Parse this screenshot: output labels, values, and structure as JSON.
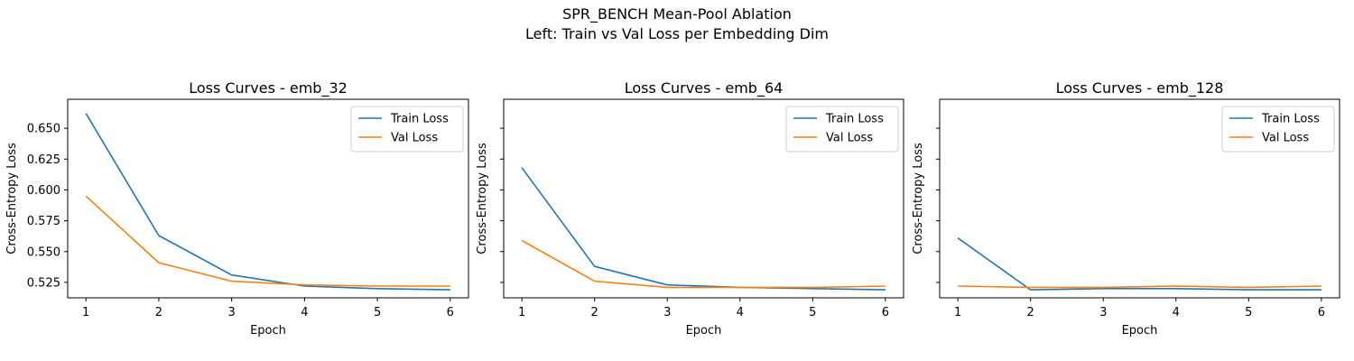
{
  "suptitle": {
    "line1": "SPR_BENCH Mean-Pool Ablation",
    "line2": "Left: Train vs Val Loss per Embedding Dim"
  },
  "chart_data": [
    {
      "type": "line",
      "title": "Loss Curves - emb_32",
      "xlabel": "Epoch",
      "ylabel": "Cross-Entropy Loss",
      "x": [
        1,
        2,
        3,
        4,
        5,
        6
      ],
      "xticks": [
        "1",
        "2",
        "3",
        "4",
        "5",
        "6"
      ],
      "yticks": [
        "0.525",
        "0.550",
        "0.575",
        "0.600",
        "0.625",
        "0.650"
      ],
      "ytick_values": [
        0.525,
        0.55,
        0.575,
        0.6,
        0.625,
        0.65
      ],
      "ylim": [
        0.5125,
        0.6735
      ],
      "legend": "upper right",
      "series": [
        {
          "name": "Train Loss",
          "color": "#1f77b4",
          "values": [
            0.662,
            0.563,
            0.531,
            0.522,
            0.52,
            0.519
          ]
        },
        {
          "name": "Val Loss",
          "color": "#ff7f0e",
          "values": [
            0.595,
            0.541,
            0.526,
            0.523,
            0.522,
            0.522
          ]
        }
      ]
    },
    {
      "type": "line",
      "title": "Loss Curves - emb_64",
      "xlabel": "Epoch",
      "ylabel": "Cross-Entropy Loss",
      "x": [
        1,
        2,
        3,
        4,
        5,
        6
      ],
      "xticks": [
        "1",
        "2",
        "3",
        "4",
        "5",
        "6"
      ],
      "yticks": [],
      "ytick_values": [
        0.525,
        0.55,
        0.575,
        0.6,
        0.625,
        0.65
      ],
      "ylim": [
        0.5125,
        0.6735
      ],
      "legend": "upper right",
      "series": [
        {
          "name": "Train Loss",
          "color": "#1f77b4",
          "values": [
            0.618,
            0.538,
            0.523,
            0.521,
            0.52,
            0.519
          ]
        },
        {
          "name": "Val Loss",
          "color": "#ff7f0e",
          "values": [
            0.559,
            0.526,
            0.521,
            0.521,
            0.521,
            0.522
          ]
        }
      ]
    },
    {
      "type": "line",
      "title": "Loss Curves - emb_128",
      "xlabel": "Epoch",
      "ylabel": "Cross-Entropy Loss",
      "x": [
        1,
        2,
        3,
        4,
        5,
        6
      ],
      "xticks": [
        "1",
        "2",
        "3",
        "4",
        "5",
        "6"
      ],
      "yticks": [],
      "ytick_values": [
        0.525,
        0.55,
        0.575,
        0.6,
        0.625,
        0.65
      ],
      "ylim": [
        0.5125,
        0.6735
      ],
      "legend": "upper right",
      "series": [
        {
          "name": "Train Loss",
          "color": "#1f77b4",
          "values": [
            0.561,
            0.519,
            0.52,
            0.52,
            0.519,
            0.519
          ]
        },
        {
          "name": "Val Loss",
          "color": "#ff7f0e",
          "values": [
            0.522,
            0.521,
            0.521,
            0.522,
            0.521,
            0.522
          ]
        }
      ]
    }
  ]
}
